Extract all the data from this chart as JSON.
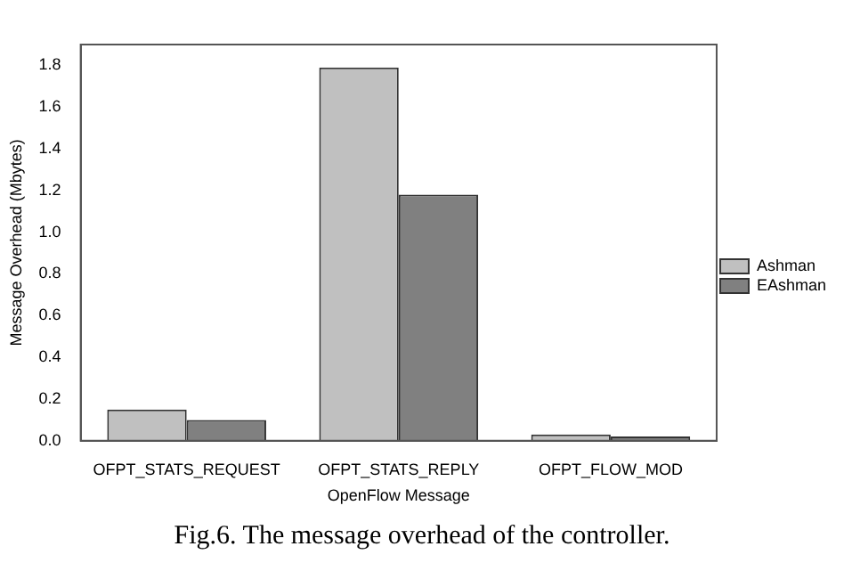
{
  "chart_data": {
    "type": "bar",
    "xlabel": "OpenFlow Message",
    "ylabel": "Message Overhead (Mbytes)",
    "categories": [
      "OFPT_STATS_REQUEST",
      "OFPT_STATS_REPLY",
      "OFPT_FLOW_MOD"
    ],
    "series": [
      {
        "name": "Ashman",
        "color": "#c0c0c0",
        "values": [
          0.15,
          1.79,
          0.03
        ]
      },
      {
        "name": "EAshman",
        "color": "#808080",
        "values": [
          0.1,
          1.18,
          0.02
        ]
      }
    ],
    "ylim": [
      0,
      1.9
    ],
    "yticks": [
      {
        "value": 0,
        "label": "0.0"
      },
      0.2,
      0.4,
      0.6,
      0.8,
      {
        "value": 1,
        "label": "1.0"
      },
      1.2,
      1.4,
      1.6,
      1.8
    ],
    "grid": false,
    "legend": "right",
    "annotations": [
      "Fig.6. The message overhead of the controller."
    ]
  }
}
